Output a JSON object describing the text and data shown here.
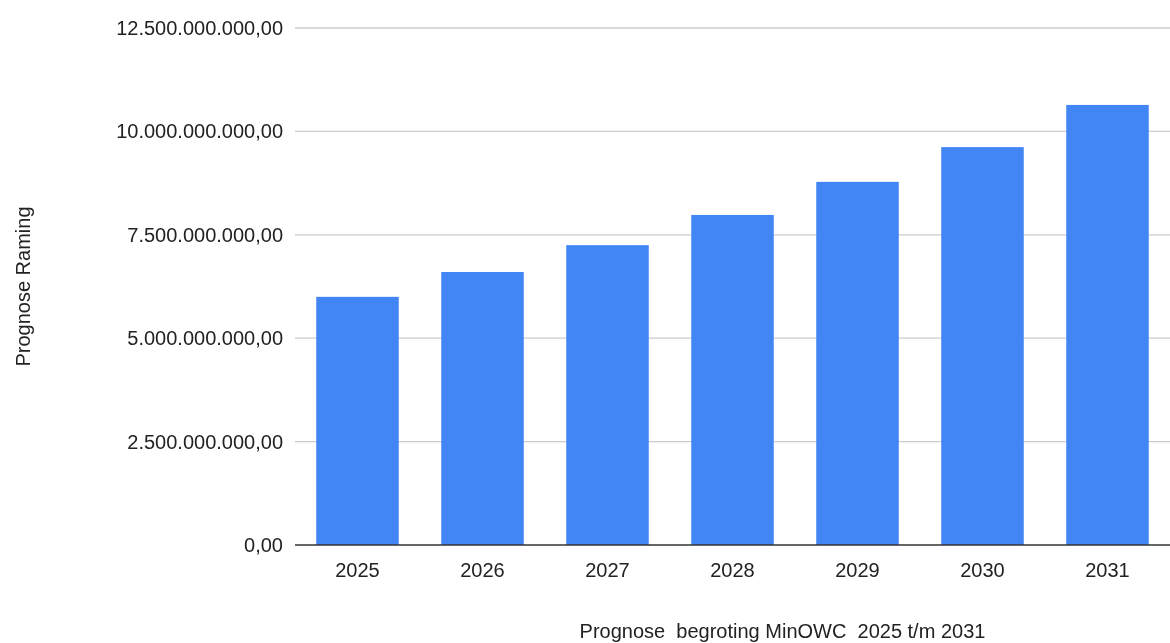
{
  "chart_data": {
    "type": "bar",
    "xlabel": "Prognose  begroting MinOWC  2025 t/m 2031",
    "ylabel": "Prognose Raming",
    "categories": [
      "2025",
      "2026",
      "2027",
      "2028",
      "2029",
      "2030",
      "2031"
    ],
    "values": [
      6000000000,
      6600000000,
      7250000000,
      7980000000,
      8780000000,
      9620000000,
      10640000000
    ],
    "color": "#4285f4",
    "ylim": [
      0,
      12500000000
    ],
    "yticks": [
      {
        "value": 0,
        "label": "0,00"
      },
      {
        "value": 2500000000,
        "label": "2.500.000.000,00"
      },
      {
        "value": 5000000000,
        "label": "5.000.000.000,00"
      },
      {
        "value": 7500000000,
        "label": "7.500.000.000,00"
      },
      {
        "value": 10000000000,
        "label": "10.000.000.000,00"
      },
      {
        "value": 12500000000,
        "label": "12.500.000.000,00"
      }
    ],
    "grid": "y"
  }
}
